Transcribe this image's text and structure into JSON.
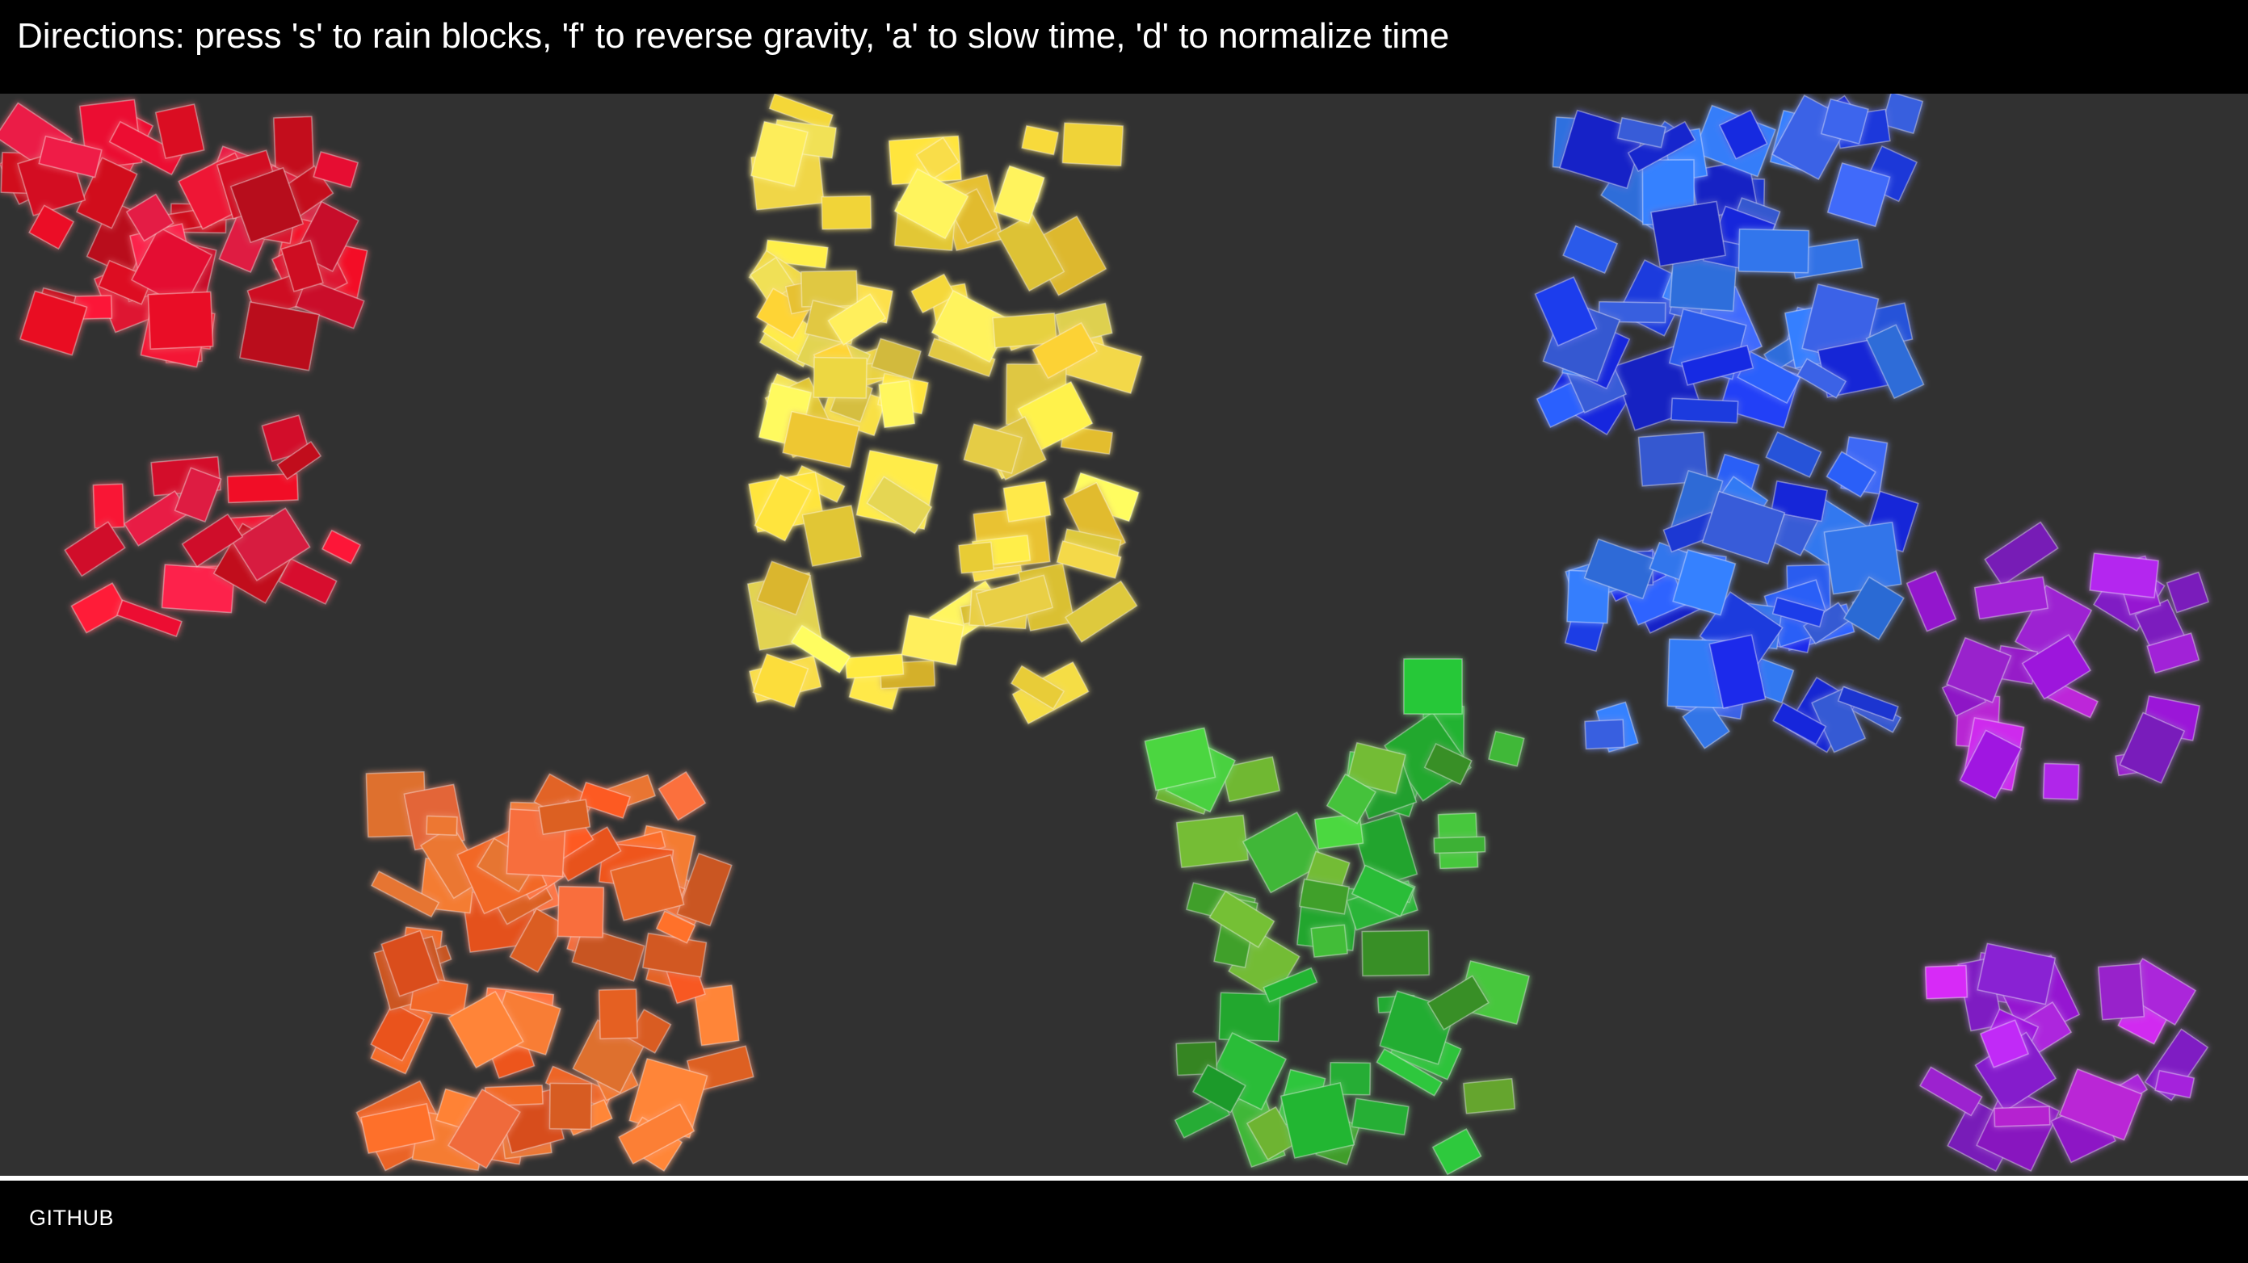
{
  "header": {
    "directions": "Directions: press 's' to rain blocks, 'f' to reverse gravity, 'a' to slow time, 'd' to normalize time"
  },
  "footer": {
    "link_label": "GITHUB"
  },
  "colors": {
    "background": "#000000",
    "canvas": "#313131",
    "floor": "#ffffff",
    "red": "#e8102a",
    "orange": "#f26a28",
    "yellow": "#f7d93a",
    "green": "#2cbf3a",
    "blue": "#2a5cf0",
    "purple": "#a823e0"
  },
  "scene": {
    "block_groups": [
      "red",
      "orange",
      "yellow",
      "green",
      "blue",
      "purple"
    ]
  }
}
